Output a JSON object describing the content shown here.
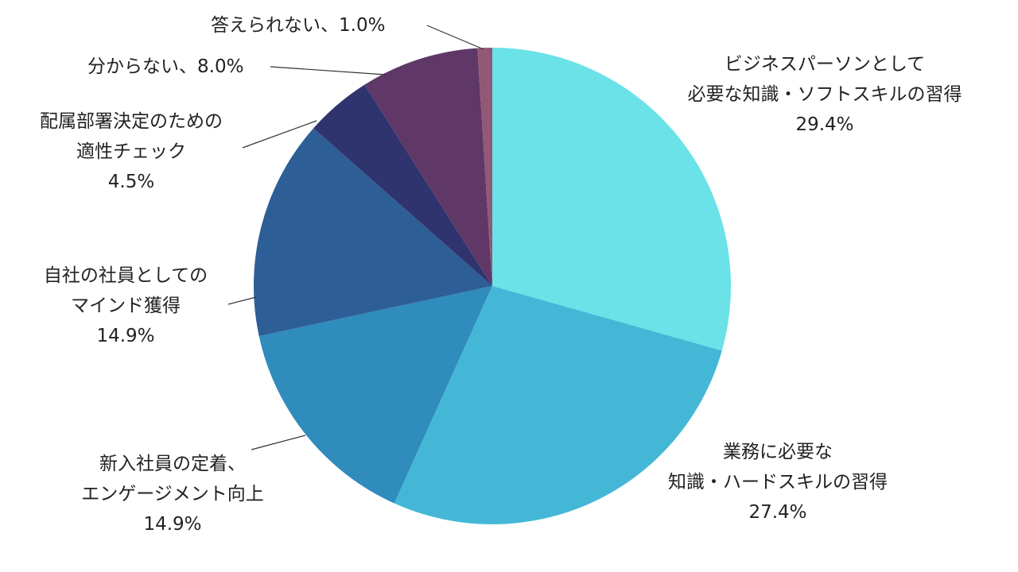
{
  "chart_data": {
    "type": "pie",
    "title": "",
    "start_angle_deg": 0,
    "direction": "clockwise",
    "slices": [
      {
        "label_lines": [
          "ビジネスパーソンとして",
          "必要な知識・ソフトスキルの習得"
        ],
        "value": 29.4,
        "value_text": "29.4%",
        "color": "#6AE2E8"
      },
      {
        "label_lines": [
          "業務に必要な",
          "知識・ハードスキルの習得"
        ],
        "value": 27.4,
        "value_text": "27.4%",
        "color": "#44B7D6"
      },
      {
        "label_lines": [
          "新入社員の定着、",
          "エンゲージメント向上"
        ],
        "value": 14.9,
        "value_text": "14.9%",
        "color": "#2F8CBC"
      },
      {
        "label_lines": [
          "自社の社員としての",
          "マインド獲得"
        ],
        "value": 14.9,
        "value_text": "14.9%",
        "color": "#2E5E96"
      },
      {
        "label_lines": [
          "配属部署決定のための",
          "適性チェック"
        ],
        "value": 4.5,
        "value_text": "4.5%",
        "color": "#30346E"
      },
      {
        "label_lines": [
          "分からない、8.0%"
        ],
        "value": 8.0,
        "value_text": "",
        "color": "#5F3868"
      },
      {
        "label_lines": [
          "答えられない、1.0%"
        ],
        "value": 1.0,
        "value_text": "",
        "color": "#925875"
      }
    ],
    "legend": "none"
  }
}
